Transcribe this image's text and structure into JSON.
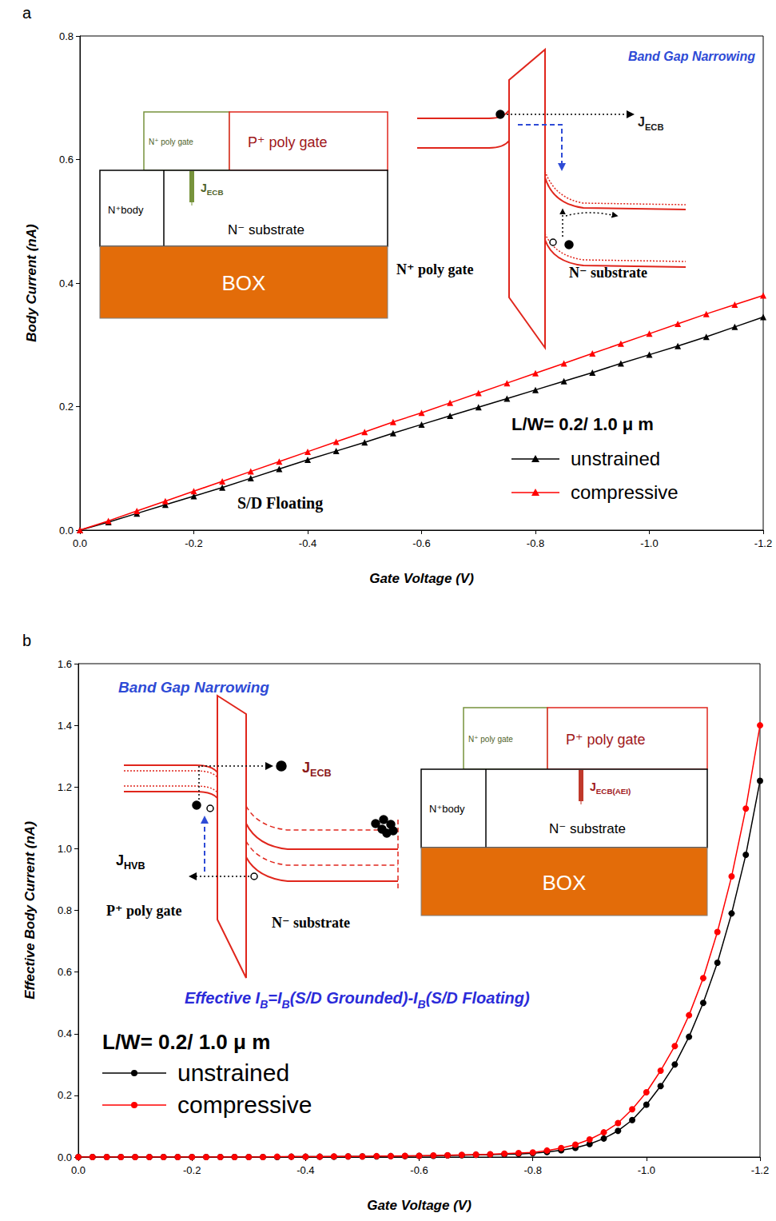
{
  "chart_data": [
    {
      "type": "line",
      "panel_label": "a",
      "x_label": "Gate Voltage (V)",
      "y_label": "Body Current (nA)",
      "xlim": [
        0,
        -1.2
      ],
      "xticks": [
        {
          "value": 0,
          "label": "0.0"
        },
        -0.2,
        -0.4,
        -0.6,
        -0.8,
        {
          "value": -1,
          "label": "-1.0"
        },
        -1.2
      ],
      "ylim": [
        0,
        0.8
      ],
      "yticks": [
        {
          "value": 0,
          "label": "0.0"
        },
        0.2,
        0.4,
        0.6,
        0.8
      ],
      "grid": false,
      "legend": "lower right",
      "legend_title": "L/W= 0.2/ 1.0 μ m",
      "x": [
        0,
        -0.05,
        -0.1,
        -0.15,
        -0.2,
        -0.25,
        -0.3,
        -0.35,
        -0.4,
        -0.45,
        -0.5,
        -0.55,
        -0.6,
        -0.65,
        -0.7,
        -0.75,
        -0.8,
        -0.85,
        -0.9,
        -0.95,
        -1,
        -1.05,
        -1.1,
        -1.15,
        -1.2
      ],
      "series": [
        {
          "name": "unstrained",
          "color": "#000000",
          "marker": "triangle",
          "values": [
            0,
            0.013,
            0.027,
            0.041,
            0.055,
            0.069,
            0.084,
            0.099,
            0.114,
            0.128,
            0.142,
            0.157,
            0.171,
            0.185,
            0.199,
            0.213,
            0.227,
            0.241,
            0.255,
            0.27,
            0.284,
            0.298,
            0.313,
            0.329,
            0.345
          ]
        },
        {
          "name": "compressive",
          "color": "#ff0000",
          "marker": "triangle",
          "values": [
            0,
            0.015,
            0.031,
            0.047,
            0.063,
            0.079,
            0.095,
            0.111,
            0.127,
            0.143,
            0.159,
            0.175,
            0.19,
            0.206,
            0.222,
            0.238,
            0.254,
            0.27,
            0.286,
            0.302,
            0.318,
            0.334,
            0.35,
            0.365,
            0.38
          ]
        }
      ],
      "annotations": {
        "device": {
          "gate_left": "N⁺ poly gate",
          "gate_right": "P⁺ poly gate",
          "body": "N⁺body",
          "substrate": "N⁻ substrate",
          "current": [
            {
              "text": "J"
            },
            {
              "sub": "ECB"
            }
          ],
          "box": "BOX"
        },
        "band_diagram": {
          "title": "Band Gap Narrowing",
          "current": [
            {
              "text": "J"
            },
            {
              "sub": "ECB"
            }
          ],
          "gate": "N⁺ poly gate",
          "substrate": "N⁻ substrate"
        },
        "note": "S/D Floating"
      }
    },
    {
      "type": "line",
      "panel_label": "b",
      "x_label": "Gate Voltage (V)",
      "y_label": "Effective Body Current (nA)",
      "xlim": [
        0,
        -1.2
      ],
      "xticks": [
        {
          "value": 0,
          "label": "0.0"
        },
        -0.2,
        -0.4,
        -0.6,
        -0.8,
        {
          "value": -1,
          "label": "-1.0"
        },
        -1.2
      ],
      "ylim": [
        0,
        1.6
      ],
      "yticks": [
        {
          "value": 0,
          "label": "0.0"
        },
        0.2,
        0.4,
        0.6,
        0.8,
        {
          "value": 1,
          "label": "1.0"
        },
        1.2,
        1.4,
        1.6
      ],
      "grid": false,
      "legend": "lower left",
      "legend_title": "L/W= 0.2/ 1.0 μ m",
      "x": [
        0,
        -0.025,
        -0.05,
        -0.075,
        -0.1,
        -0.125,
        -0.15,
        -0.175,
        -0.2,
        -0.225,
        -0.25,
        -0.275,
        -0.3,
        -0.325,
        -0.35,
        -0.375,
        -0.4,
        -0.425,
        -0.45,
        -0.475,
        -0.5,
        -0.525,
        -0.55,
        -0.575,
        -0.6,
        -0.625,
        -0.65,
        -0.675,
        -0.7,
        -0.725,
        -0.75,
        -0.775,
        -0.8,
        -0.825,
        -0.85,
        -0.875,
        -0.9,
        -0.925,
        -0.95,
        -0.975,
        -1,
        -1.025,
        -1.05,
        -1.075,
        -1.1,
        -1.125,
        -1.15,
        -1.175,
        -1.2
      ],
      "series": [
        {
          "name": "unstrained",
          "color": "#000000",
          "marker": "circle",
          "values": [
            0,
            0,
            0,
            0,
            0,
            0,
            0,
            0,
            0,
            0,
            0,
            0,
            0,
            0,
            0,
            0.001,
            0.001,
            0.001,
            0.001,
            0.002,
            0.002,
            0.002,
            0.003,
            0.003,
            0.004,
            0.004,
            0.005,
            0.006,
            0.007,
            0.008,
            0.009,
            0.01,
            0.012,
            0.016,
            0.022,
            0.03,
            0.042,
            0.06,
            0.085,
            0.12,
            0.17,
            0.23,
            0.3,
            0.39,
            0.5,
            0.63,
            0.79,
            0.98,
            1.22
          ]
        },
        {
          "name": "compressive",
          "color": "#ff0000",
          "marker": "circle",
          "values": [
            0,
            0,
            0,
            0,
            0,
            0,
            0,
            0,
            0,
            0,
            0,
            0,
            0,
            0,
            0.001,
            0.001,
            0.001,
            0.001,
            0.002,
            0.002,
            0.002,
            0.003,
            0.003,
            0.004,
            0.004,
            0.005,
            0.006,
            0.007,
            0.008,
            0.009,
            0.011,
            0.013,
            0.015,
            0.021,
            0.029,
            0.04,
            0.057,
            0.08,
            0.11,
            0.155,
            0.21,
            0.28,
            0.36,
            0.46,
            0.58,
            0.73,
            0.91,
            1.13,
            1.4
          ]
        }
      ],
      "annotations": {
        "band_diagram": {
          "title": "Band Gap Narrowing",
          "current": [
            {
              "text": "J"
            },
            {
              "sub": "ECB"
            }
          ],
          "current2": [
            {
              "text": "J"
            },
            {
              "sub": "HVB"
            }
          ],
          "gate": "P⁺ poly gate",
          "substrate": "N⁻ substrate"
        },
        "device": {
          "gate_left": "N⁺ poly gate",
          "gate_right": "P⁺ poly gate",
          "body": "N⁺body",
          "substrate": "N⁻ substrate",
          "current": [
            {
              "text": "J"
            },
            {
              "sub": "ECB(AEI)"
            }
          ],
          "box": "BOX"
        },
        "note": [
          {
            "text": "Effective I"
          },
          {
            "sub": "B"
          },
          {
            "text": "=I"
          },
          {
            "sub": "B"
          },
          {
            "text": "(S/D Grounded)-I"
          },
          {
            "sub": "B"
          },
          {
            "text": "(S/D Floating)"
          }
        ]
      }
    }
  ]
}
